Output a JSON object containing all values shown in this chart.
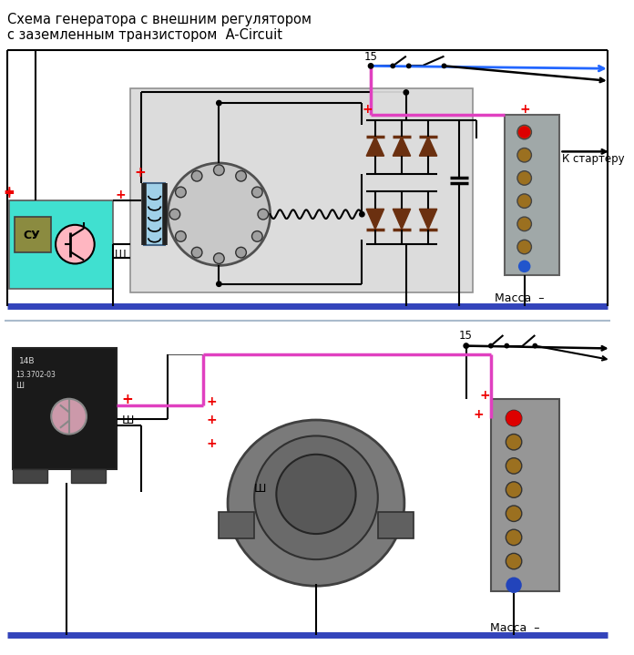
{
  "title_line1": "Схема генератора с внешним регулятором",
  "title_line2": "с заземленным транзистором  A-Circuit",
  "massa_text": "Масса",
  "k_starteru": "К стартеру",
  "label_15": "15",
  "label_sh": "Ш",
  "label_plus": "+",
  "label_minus": "–",
  "bg_color": "#ffffff",
  "diode_color": "#6B3010",
  "pink_color": "#E040C0",
  "cyan_color": "#40E0D0",
  "blue_arrow_color": "#2266FF",
  "black": "#000000",
  "red": "#EE0000",
  "dark_blue": "#3344BB",
  "gray_inner": "#DCDCDC",
  "gray_terminal": "#A0A8A8",
  "teal_reg": "#40E0D0",
  "olive_su": "#8B8B40",
  "screw_color": "#9B7020"
}
